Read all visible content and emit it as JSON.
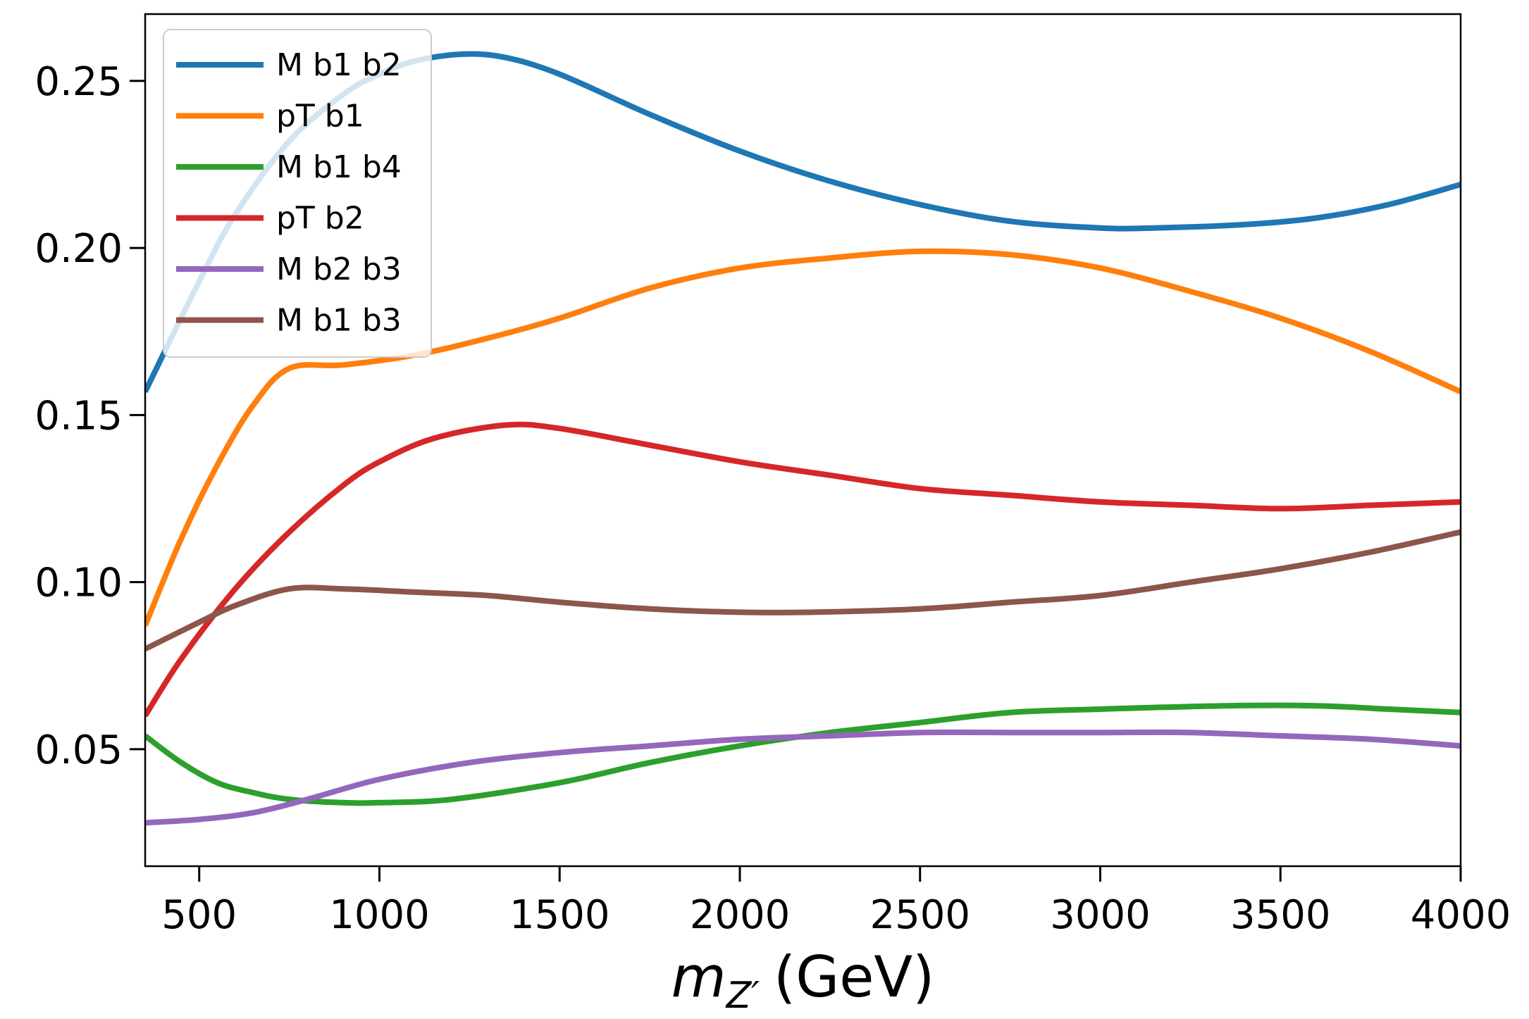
{
  "chart_data": {
    "type": "line",
    "title": "",
    "xlabel": {
      "symbol": "m",
      "subscript": "Z′",
      "unit": "(GeV)"
    },
    "ylabel": "",
    "xlim": [
      350,
      4000
    ],
    "ylim": [
      0.015,
      0.27
    ],
    "xticks": [
      500,
      1000,
      1500,
      2000,
      2500,
      3000,
      3500,
      4000
    ],
    "yticks": [
      0.05,
      0.1,
      0.15,
      0.2,
      0.25
    ],
    "xtick_labels": [
      "500",
      "1000",
      "1500",
      "2000",
      "2500",
      "3000",
      "3500",
      "4000"
    ],
    "ytick_labels": [
      "0.05",
      "0.10",
      "0.15",
      "0.20",
      "0.25"
    ],
    "grid": false,
    "legend_position": "top-left",
    "series": [
      {
        "name": "M b1 b2",
        "color": "#1f77b4",
        "points": [
          [
            350,
            0.157
          ],
          [
            500,
            0.19
          ],
          [
            600,
            0.21
          ],
          [
            750,
            0.232
          ],
          [
            900,
            0.246
          ],
          [
            1000,
            0.252
          ],
          [
            1100,
            0.256
          ],
          [
            1230,
            0.258
          ],
          [
            1350,
            0.257
          ],
          [
            1500,
            0.252
          ],
          [
            1750,
            0.24
          ],
          [
            2000,
            0.229
          ],
          [
            2250,
            0.22
          ],
          [
            2500,
            0.213
          ],
          [
            2750,
            0.208
          ],
          [
            3000,
            0.206
          ],
          [
            3150,
            0.206
          ],
          [
            3400,
            0.207
          ],
          [
            3600,
            0.209
          ],
          [
            3800,
            0.213
          ],
          [
            4000,
            0.219
          ]
        ]
      },
      {
        "name": "pT b1",
        "color": "#ff7f0e",
        "points": [
          [
            350,
            0.087
          ],
          [
            450,
            0.113
          ],
          [
            550,
            0.135
          ],
          [
            650,
            0.153
          ],
          [
            750,
            0.164
          ],
          [
            900,
            0.165
          ],
          [
            1100,
            0.168
          ],
          [
            1300,
            0.173
          ],
          [
            1500,
            0.179
          ],
          [
            1750,
            0.188
          ],
          [
            2000,
            0.194
          ],
          [
            2250,
            0.197
          ],
          [
            2500,
            0.199
          ],
          [
            2750,
            0.198
          ],
          [
            3000,
            0.194
          ],
          [
            3250,
            0.187
          ],
          [
            3500,
            0.179
          ],
          [
            3750,
            0.169
          ],
          [
            4000,
            0.157
          ]
        ]
      },
      {
        "name": "M b1 b4",
        "color": "#2ca02c",
        "points": [
          [
            350,
            0.054
          ],
          [
            450,
            0.046
          ],
          [
            550,
            0.04
          ],
          [
            650,
            0.037
          ],
          [
            750,
            0.035
          ],
          [
            900,
            0.034
          ],
          [
            1000,
            0.034
          ],
          [
            1200,
            0.035
          ],
          [
            1500,
            0.04
          ],
          [
            1750,
            0.046
          ],
          [
            2000,
            0.051
          ],
          [
            2250,
            0.055
          ],
          [
            2500,
            0.058
          ],
          [
            2750,
            0.061
          ],
          [
            3000,
            0.062
          ],
          [
            3350,
            0.063
          ],
          [
            3600,
            0.063
          ],
          [
            3800,
            0.062
          ],
          [
            4000,
            0.061
          ]
        ]
      },
      {
        "name": "pT b2",
        "color": "#d62728",
        "points": [
          [
            350,
            0.06
          ],
          [
            450,
            0.077
          ],
          [
            600,
            0.098
          ],
          [
            750,
            0.115
          ],
          [
            900,
            0.129
          ],
          [
            1000,
            0.136
          ],
          [
            1150,
            0.143
          ],
          [
            1350,
            0.147
          ],
          [
            1500,
            0.146
          ],
          [
            1750,
            0.141
          ],
          [
            2000,
            0.136
          ],
          [
            2250,
            0.132
          ],
          [
            2500,
            0.128
          ],
          [
            2750,
            0.126
          ],
          [
            3000,
            0.124
          ],
          [
            3250,
            0.123
          ],
          [
            3500,
            0.122
          ],
          [
            3750,
            0.123
          ],
          [
            4000,
            0.124
          ]
        ]
      },
      {
        "name": "M b2 b3",
        "color": "#9467bd",
        "points": [
          [
            350,
            0.028
          ],
          [
            500,
            0.029
          ],
          [
            650,
            0.031
          ],
          [
            800,
            0.035
          ],
          [
            1000,
            0.041
          ],
          [
            1250,
            0.046
          ],
          [
            1500,
            0.049
          ],
          [
            1750,
            0.051
          ],
          [
            2000,
            0.053
          ],
          [
            2250,
            0.054
          ],
          [
            2500,
            0.055
          ],
          [
            2750,
            0.055
          ],
          [
            3000,
            0.055
          ],
          [
            3250,
            0.055
          ],
          [
            3500,
            0.054
          ],
          [
            3750,
            0.053
          ],
          [
            4000,
            0.051
          ]
        ]
      },
      {
        "name": "M b1 b3",
        "color": "#8c564b",
        "points": [
          [
            350,
            0.08
          ],
          [
            500,
            0.088
          ],
          [
            600,
            0.093
          ],
          [
            750,
            0.098
          ],
          [
            900,
            0.098
          ],
          [
            1100,
            0.097
          ],
          [
            1300,
            0.096
          ],
          [
            1500,
            0.094
          ],
          [
            1750,
            0.092
          ],
          [
            2000,
            0.091
          ],
          [
            2200,
            0.091
          ],
          [
            2500,
            0.092
          ],
          [
            2750,
            0.094
          ],
          [
            3000,
            0.096
          ],
          [
            3250,
            0.1
          ],
          [
            3500,
            0.104
          ],
          [
            3750,
            0.109
          ],
          [
            4000,
            0.115
          ]
        ]
      }
    ]
  }
}
